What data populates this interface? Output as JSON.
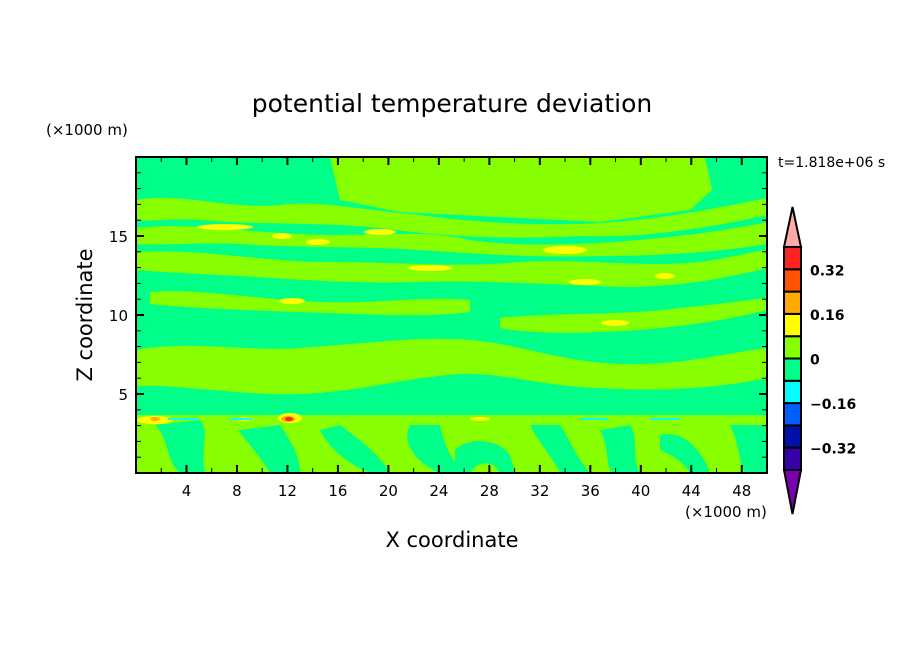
{
  "chart_data": {
    "type": "heatmap",
    "title": "potential temperature deviation",
    "xlabel": "X coordinate",
    "ylabel": "Z coordinate",
    "x_unit_label": "(×1000 m)",
    "y_unit_label": "(×1000 m)",
    "time_label": "t=1.818e+06 s",
    "xlim": [
      0,
      50
    ],
    "ylim": [
      0,
      20
    ],
    "x_ticks": [
      4,
      8,
      12,
      16,
      20,
      24,
      28,
      32,
      36,
      40,
      44,
      48
    ],
    "x_tick_labels": [
      "4",
      "8",
      "12",
      "16",
      "20",
      "24",
      "28",
      "32",
      "36",
      "40",
      "44",
      "48"
    ],
    "y_ticks": [
      5,
      10,
      15
    ],
    "y_tick_labels": [
      "5",
      "10",
      "15"
    ],
    "colorbar": {
      "levels": [
        -0.4,
        -0.32,
        -0.24,
        -0.16,
        -0.08,
        0,
        0.08,
        0.16,
        0.24,
        0.32,
        0.4
      ],
      "colors": [
        "#3a00a8",
        "#0010a8",
        "#0060ff",
        "#00ffff",
        "#00ff88",
        "#88ff00",
        "#ffff00",
        "#ffaa00",
        "#ff5500",
        "#ff2222"
      ],
      "over_color": "#ffaaaa",
      "under_color": "#7a00b0",
      "labels": [
        {
          "value": 0.32,
          "text": "0.32"
        },
        {
          "value": 0.16,
          "text": "0.16"
        },
        {
          "value": 0,
          "text": "0"
        },
        {
          "value": -0.16,
          "text": "−0.16"
        },
        {
          "value": -0.32,
          "text": "−0.32"
        }
      ]
    }
  }
}
